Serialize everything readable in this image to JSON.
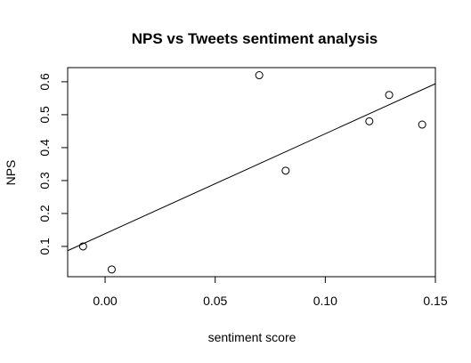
{
  "chart_data": {
    "type": "scatter",
    "title": "NPS vs Tweets sentiment analysis",
    "xlabel": "sentiment score",
    "ylabel": "NPS",
    "xlim": [
      -0.017,
      0.15
    ],
    "ylim": [
      0.008,
      0.643
    ],
    "xticks": [
      0.0,
      0.05,
      0.1,
      0.15
    ],
    "xtick_labels": [
      "0.00",
      "0.05",
      "0.10",
      "0.15"
    ],
    "yticks": [
      0.1,
      0.2,
      0.3,
      0.4,
      0.5,
      0.6
    ],
    "ytick_labels": [
      "0.1",
      "0.2",
      "0.3",
      "0.4",
      "0.5",
      "0.6"
    ],
    "grid": false,
    "legend": false,
    "points": [
      {
        "x": -0.01,
        "y": 0.1
      },
      {
        "x": 0.003,
        "y": 0.03
      },
      {
        "x": 0.07,
        "y": 0.62
      },
      {
        "x": 0.082,
        "y": 0.33
      },
      {
        "x": 0.12,
        "y": 0.48
      },
      {
        "x": 0.129,
        "y": 0.56
      },
      {
        "x": 0.144,
        "y": 0.47
      }
    ],
    "trend_line": {
      "x": [
        -0.017,
        0.15
      ],
      "y": [
        0.087,
        0.594
      ]
    },
    "point_style": "open-circle",
    "colors": {
      "points": "#000000",
      "line": "#000000",
      "axes": "#000000"
    }
  }
}
